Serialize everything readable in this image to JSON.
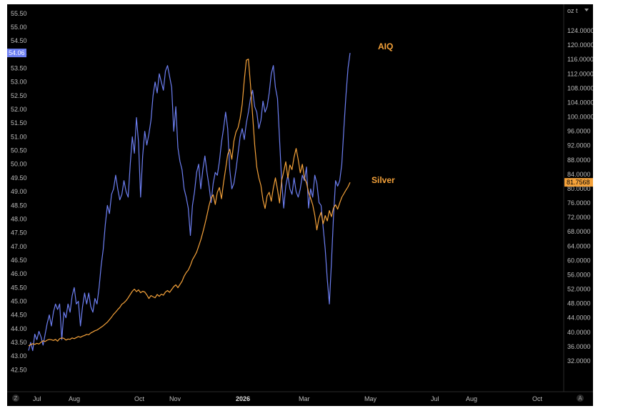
{
  "chart_data": {
    "type": "line",
    "title": "",
    "xlabel": "",
    "x_ticks": [
      "Jul",
      "Aug",
      "Oct",
      "Nov",
      "2026",
      "Mar",
      "May",
      "Jul",
      "Aug",
      "Oct"
    ],
    "left_axis": {
      "ylim": [
        42.3,
        55.6
      ],
      "ticks": [
        "55.50",
        "55.00",
        "54.50",
        "54.00",
        "53.50",
        "53.00",
        "52.50",
        "52.00",
        "51.50",
        "51.00",
        "50.50",
        "50.00",
        "49.50",
        "49.00",
        "48.50",
        "48.00",
        "47.50",
        "47.00",
        "46.50",
        "46.00",
        "45.50",
        "45.00",
        "44.50",
        "44.00",
        "43.50",
        "43.00",
        "42.50"
      ],
      "last_value": "54.06",
      "last_value_color": "#6d7ff2"
    },
    "right_axis": {
      "unit_label": "oz t",
      "ylim": [
        28,
        126
      ],
      "ticks": [
        "124.0000",
        "120.0000",
        "116.0000",
        "112.0000",
        "108.0000",
        "104.0000",
        "100.0000",
        "96.0000",
        "92.0000",
        "88.0000",
        "84.0000",
        "80.0000",
        "76.0000",
        "72.0000",
        "68.0000",
        "64.0000",
        "60.0000",
        "56.0000",
        "52.0000",
        "48.0000",
        "44.0000",
        "40.0000",
        "36.0000",
        "32.0000"
      ],
      "last_value": "81.7568",
      "last_value_color": "#f5a23a"
    },
    "series": [
      {
        "name": "AIQ",
        "axis": "left",
        "color": "#6d7ff2",
        "x": [
          0,
          2,
          4,
          6,
          8,
          10,
          12,
          14,
          16,
          18,
          20,
          22,
          24,
          26,
          28,
          30,
          32,
          34,
          36,
          38,
          40,
          42,
          44,
          46,
          48,
          50,
          52,
          54,
          56,
          58,
          60,
          62,
          64,
          66,
          68,
          70,
          72,
          74,
          76,
          78,
          80,
          82,
          84,
          86,
          88,
          90,
          92,
          94,
          96,
          98,
          100,
          102,
          104,
          106,
          108,
          110,
          112,
          114,
          116,
          118,
          120,
          122,
          124,
          126,
          128,
          130,
          132,
          134,
          136,
          138,
          140,
          142,
          144,
          146,
          148,
          150,
          152,
          154,
          156,
          158,
          160,
          162,
          164,
          166,
          168,
          170,
          172,
          174,
          176,
          178,
          180,
          182,
          184,
          186,
          188,
          190,
          192,
          194,
          196,
          198,
          200,
          202,
          204,
          206,
          208,
          210,
          212,
          214,
          216,
          218,
          220,
          222,
          224,
          226,
          228,
          230,
          232,
          234,
          236,
          238,
          240,
          242,
          244,
          246,
          248,
          250,
          252,
          254,
          256,
          258,
          260,
          262,
          264,
          266,
          268,
          270,
          272,
          274,
          276,
          278,
          280,
          282,
          284,
          286,
          288,
          290,
          292,
          294,
          296,
          298,
          300,
          302,
          304,
          306,
          308,
          310
        ],
        "values": [
          43.2,
          43.5,
          43.2,
          43.8,
          43.6,
          43.9,
          43.7,
          43.4,
          43.8,
          44.2,
          44.5,
          44.1,
          44.6,
          44.9,
          44.7,
          44.9,
          43.6,
          44.6,
          44.4,
          44.9,
          44.6,
          45.2,
          45.5,
          44.9,
          45.0,
          44.1,
          44.8,
          45.3,
          44.9,
          45.3,
          44.8,
          44.6,
          45.1,
          44.9,
          45.5,
          46.3,
          46.9,
          47.8,
          48.5,
          48.2,
          48.9,
          49.1,
          49.6,
          49.1,
          48.7,
          48.9,
          49.4,
          49.0,
          48.8,
          50.0,
          51.0,
          50.4,
          51.7,
          50.8,
          48.8,
          50.3,
          51.2,
          50.7,
          51.1,
          51.6,
          52.5,
          53.0,
          52.6,
          53.3,
          53.0,
          52.7,
          53.4,
          53.6,
          53.2,
          52.8,
          51.2,
          52.1,
          50.6,
          50.1,
          49.8,
          49.1,
          48.8,
          48.4,
          47.4,
          48.5,
          49.0,
          49.7,
          50.0,
          49.1,
          49.8,
          50.3,
          49.7,
          49.2,
          48.6,
          49.3,
          49.7,
          49.6,
          50.1,
          50.8,
          51.3,
          51.9,
          51.3,
          49.8,
          49.1,
          49.3,
          49.8,
          50.4,
          51.0,
          51.3,
          50.9,
          51.5,
          51.9,
          52.4,
          52.7,
          52.1,
          51.9,
          51.3,
          51.6,
          52.3,
          51.9,
          52.1,
          52.6,
          53.3,
          53.6,
          52.8,
          52.4,
          50.9,
          49.4,
          48.4,
          49.2,
          49.6,
          49.1,
          48.9,
          49.5,
          49.0,
          48.8,
          49.1,
          49.6,
          49.4,
          49.9,
          48.4,
          49.1,
          48.8,
          49.6,
          49.3,
          48.6,
          48.5,
          47.7,
          46.9,
          45.8,
          44.9,
          46.4,
          48.1,
          49.4,
          49.2,
          49.4,
          50.0,
          51.3,
          52.5,
          53.5,
          54.06
        ]
      },
      {
        "name": "Silver",
        "axis": "right",
        "color": "#f5a23a",
        "x": [
          0,
          2,
          4,
          6,
          8,
          10,
          12,
          14,
          16,
          18,
          20,
          22,
          24,
          26,
          28,
          30,
          32,
          34,
          36,
          38,
          40,
          42,
          44,
          46,
          48,
          50,
          52,
          54,
          56,
          58,
          60,
          62,
          64,
          66,
          68,
          70,
          72,
          74,
          76,
          78,
          80,
          82,
          84,
          86,
          88,
          90,
          92,
          94,
          96,
          98,
          100,
          102,
          104,
          106,
          108,
          110,
          112,
          114,
          116,
          118,
          120,
          122,
          124,
          126,
          128,
          130,
          132,
          134,
          136,
          138,
          140,
          142,
          144,
          146,
          148,
          150,
          152,
          154,
          156,
          158,
          160,
          162,
          164,
          166,
          168,
          170,
          172,
          174,
          176,
          178,
          180,
          182,
          184,
          186,
          188,
          190,
          192,
          194,
          196,
          198,
          200,
          202,
          204,
          206,
          208,
          210,
          212,
          214,
          216,
          218,
          220,
          222,
          224,
          226,
          228,
          230,
          232,
          234,
          236,
          238,
          240,
          242,
          244,
          246,
          248,
          250,
          252,
          254,
          256,
          258,
          260,
          262,
          264,
          266,
          268,
          270,
          272,
          274,
          276,
          278,
          280,
          282,
          284,
          286,
          288,
          290,
          292,
          294,
          296,
          298,
          300,
          302,
          304,
          306,
          308,
          310
        ],
        "values": [
          36.2,
          36.5,
          36.8,
          36.6,
          36.9,
          36.7,
          37.2,
          37.6,
          37.4,
          37.8,
          38.0,
          37.9,
          37.7,
          38.0,
          37.5,
          38.2,
          38.4,
          38.3,
          37.8,
          38.1,
          38.0,
          38.4,
          38.2,
          38.5,
          38.8,
          38.6,
          38.9,
          39.1,
          39.4,
          39.3,
          39.8,
          40.1,
          40.4,
          40.6,
          41.0,
          41.4,
          41.8,
          42.3,
          42.8,
          43.5,
          44.2,
          45.0,
          45.6,
          46.3,
          46.9,
          47.8,
          48.2,
          48.8,
          49.6,
          50.5,
          51.4,
          52.0,
          51.3,
          51.8,
          51.0,
          51.4,
          51.2,
          50.4,
          49.4,
          50.2,
          49.9,
          49.6,
          50.5,
          50.0,
          50.6,
          50.3,
          51.2,
          51.6,
          51.1,
          51.9,
          52.7,
          53.2,
          52.4,
          53.3,
          54.2,
          55.6,
          56.6,
          57.3,
          58.6,
          60.2,
          61.2,
          62.3,
          64.0,
          65.7,
          67.8,
          70.1,
          72.6,
          75.3,
          77.4,
          78.3,
          75.6,
          79.0,
          80.3,
          77.2,
          81.7,
          85.5,
          89.5,
          91.0,
          88.2,
          93.3,
          95.8,
          97.0,
          99.6,
          103.5,
          110.2,
          115.8,
          116.1,
          109.0,
          100.7,
          92.2,
          86.0,
          83.0,
          80.9,
          76.8,
          74.5,
          78.0,
          79.0,
          76.5,
          80.2,
          83.0,
          79.8,
          76.0,
          82.2,
          84.7,
          87.5,
          83.0,
          86.6,
          85.3,
          88.8,
          91.2,
          88.1,
          84.4,
          86.8,
          83.0,
          81.6,
          79.0,
          77.3,
          75.5,
          72.6,
          68.5,
          71.8,
          73.4,
          70.2,
          72.5,
          71.0,
          73.9,
          72.2,
          74.6,
          75.5,
          74.3,
          76.0,
          77.6,
          78.6,
          79.6,
          80.5,
          81.7568
        ]
      }
    ],
    "annotations": [
      "AIQ",
      "Silver"
    ],
    "grid": false,
    "legend": "none"
  },
  "toolbar": {
    "left_icon": "Z",
    "right_icon": "A"
  }
}
